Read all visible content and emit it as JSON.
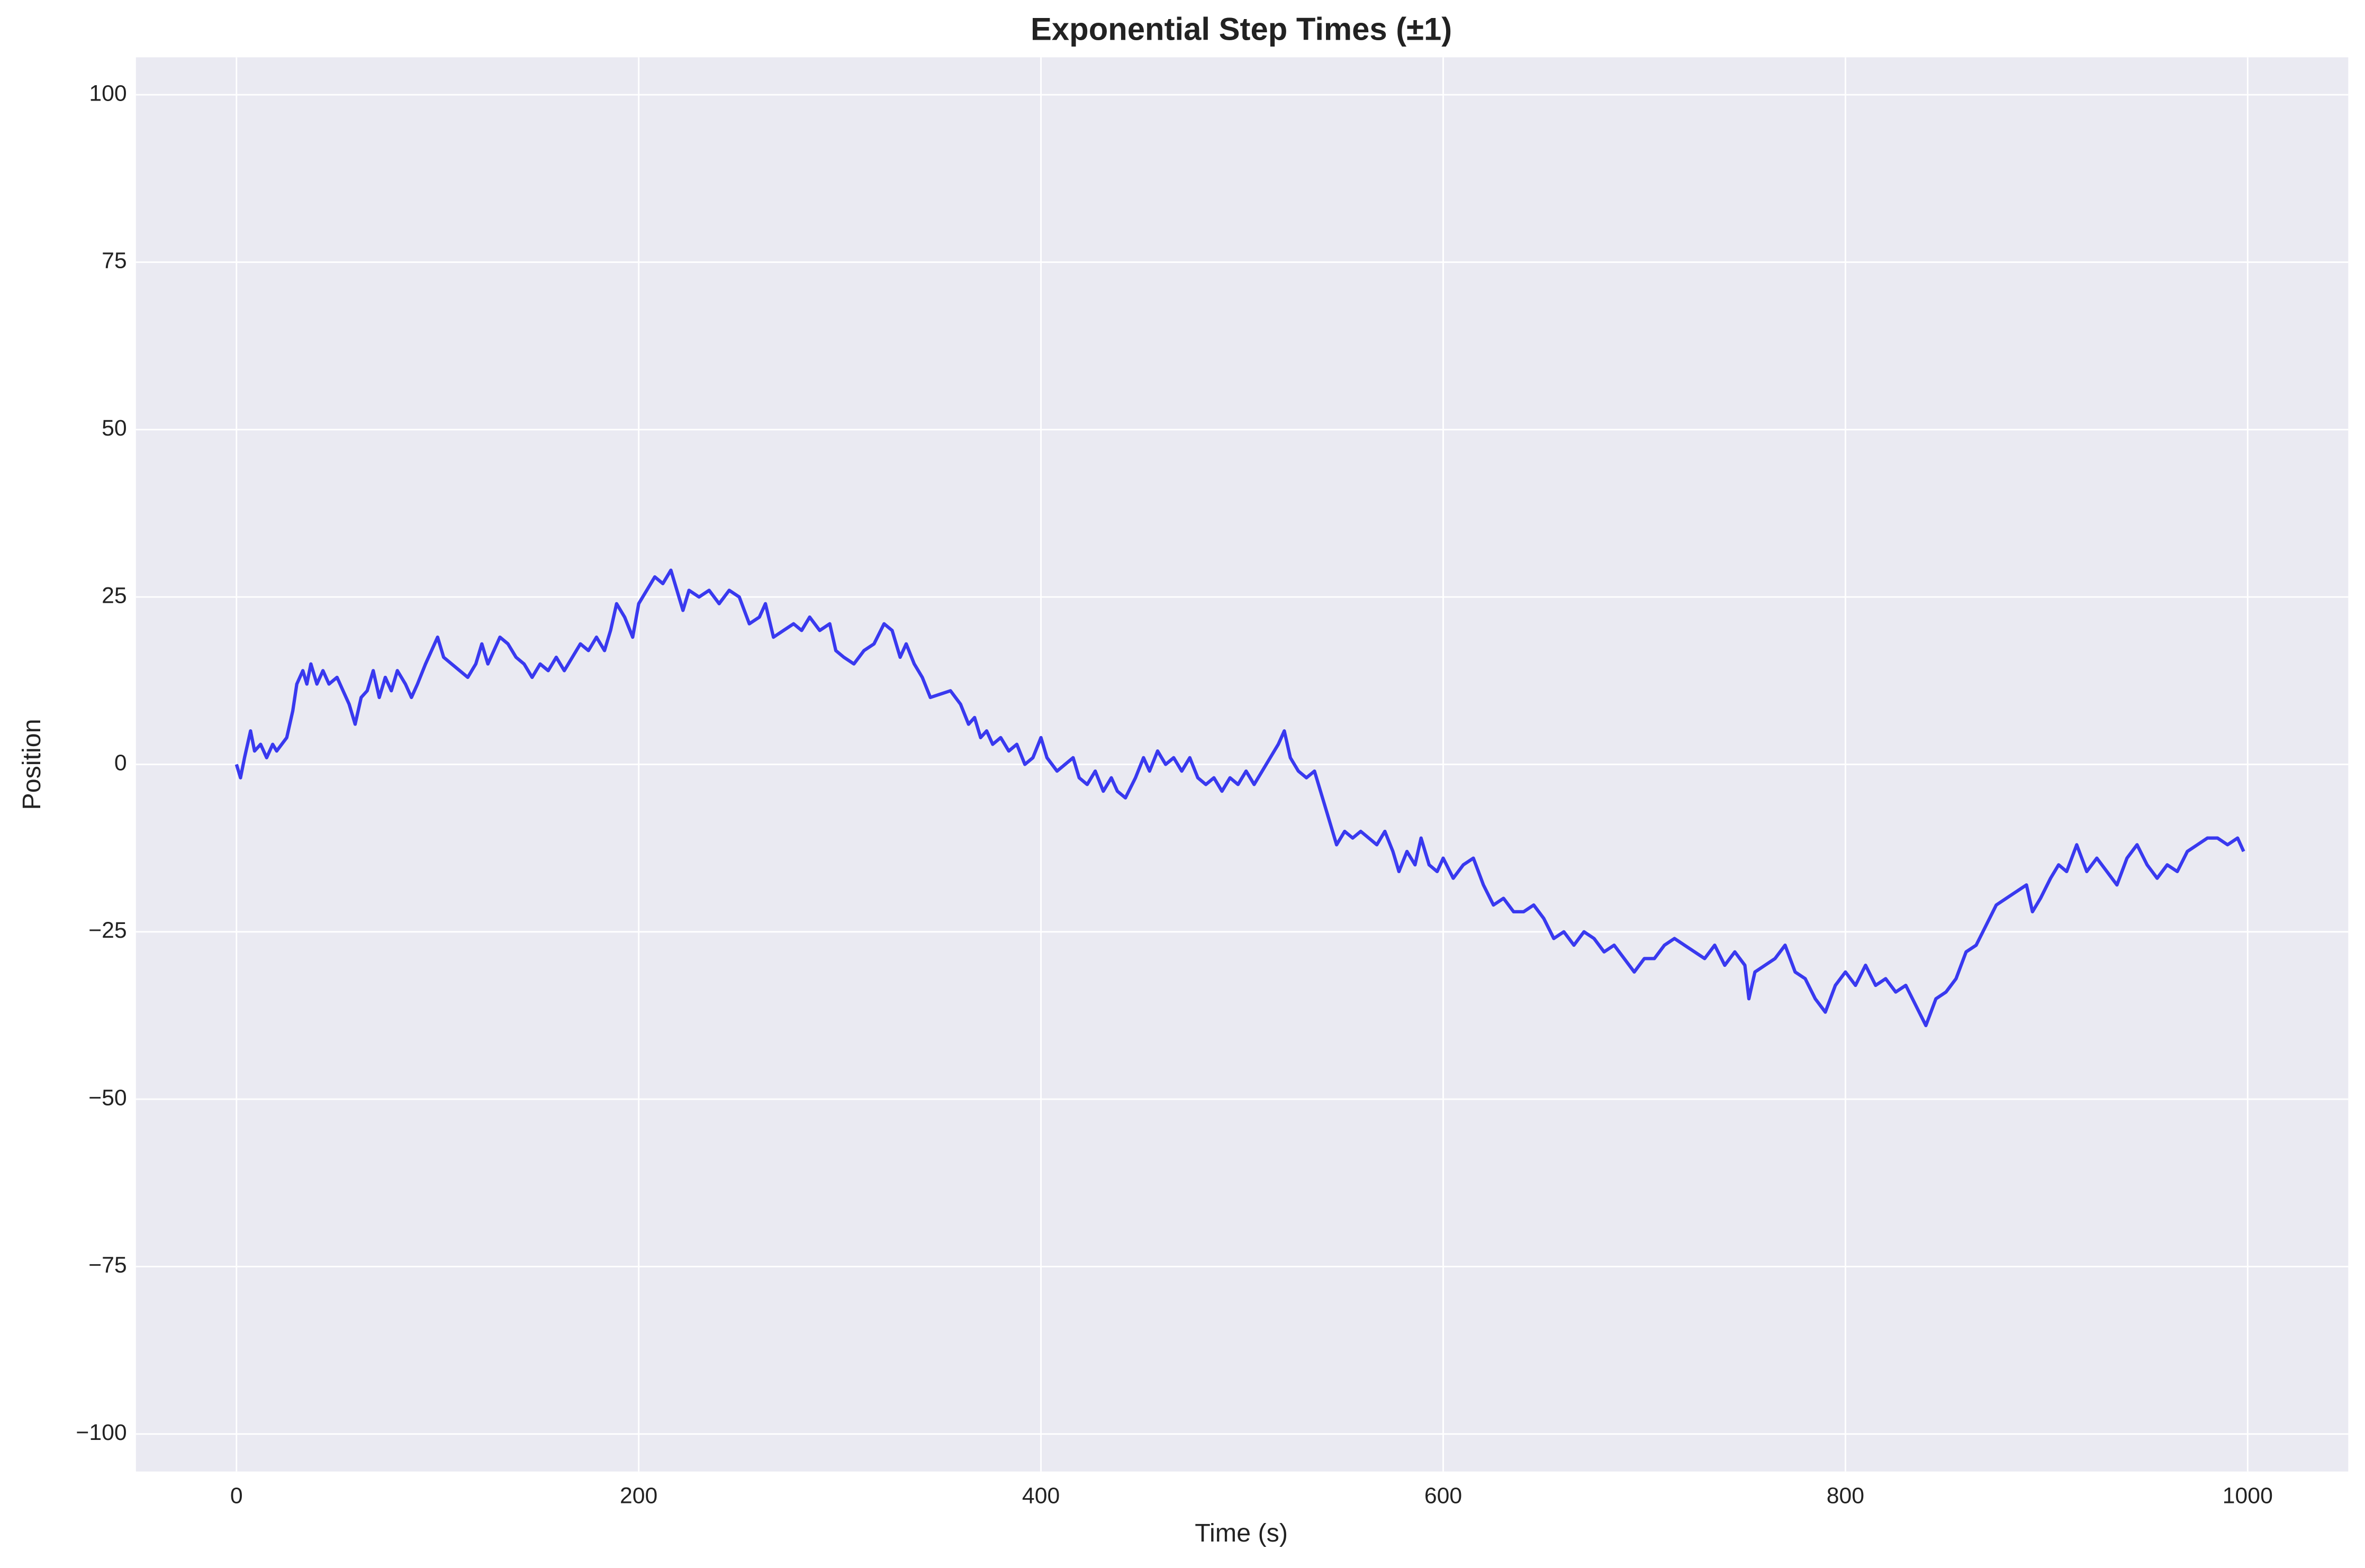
{
  "chart_data": {
    "type": "line",
    "title": "Exponential Step Times (±1)",
    "x_label": "Time (s)",
    "y_label": "Position",
    "color": "#1a1aee",
    "x": [
      0,
      2,
      4,
      7,
      9,
      12,
      15,
      18,
      20,
      25,
      28,
      30,
      33,
      35,
      37,
      40,
      43,
      46,
      50,
      53,
      56,
      59,
      62,
      65,
      68,
      71,
      74,
      77,
      80,
      84,
      87,
      90,
      94,
      97,
      100,
      103,
      107,
      111,
      115,
      119,
      122,
      125,
      128,
      131,
      135,
      139,
      143,
      147,
      151,
      155,
      159,
      163,
      167,
      171,
      175,
      179,
      183,
      186,
      189,
      193,
      197,
      200,
      204,
      208,
      212,
      216,
      219,
      222,
      225,
      230,
      235,
      240,
      245,
      250,
      255,
      260,
      263,
      267,
      272,
      277,
      281,
      285,
      290,
      295,
      298,
      302,
      307,
      312,
      317,
      322,
      326,
      330,
      333,
      337,
      341,
      345,
      355,
      360,
      364,
      367,
      370,
      373,
      376,
      380,
      384,
      388,
      392,
      396,
      400,
      403,
      408,
      412,
      416,
      419,
      423,
      427,
      431,
      435,
      438,
      442,
      447,
      451,
      454,
      458,
      462,
      466,
      470,
      474,
      478,
      482,
      486,
      490,
      494,
      498,
      502,
      506,
      510,
      514,
      518,
      521,
      524,
      528,
      532,
      536,
      539,
      543,
      547,
      551,
      555,
      559,
      563,
      567,
      571,
      575,
      578,
      582,
      586,
      589,
      593,
      597,
      600,
      605,
      610,
      615,
      620,
      625,
      630,
      635,
      640,
      645,
      650,
      655,
      660,
      665,
      670,
      675,
      680,
      685,
      690,
      695,
      700,
      705,
      710,
      715,
      720,
      725,
      730,
      735,
      740,
      745,
      750,
      752,
      755,
      760,
      765,
      770,
      775,
      780,
      785,
      790,
      795,
      800,
      805,
      810,
      815,
      820,
      825,
      830,
      835,
      840,
      845,
      850,
      855,
      860,
      865,
      870,
      875,
      880,
      885,
      890,
      893,
      897,
      902,
      906,
      910,
      915,
      920,
      925,
      930,
      935,
      940,
      945,
      950,
      955,
      960,
      965,
      970,
      975,
      980,
      985,
      990,
      995,
      998
    ],
    "values": [
      0,
      -2,
      1,
      5,
      2,
      3,
      1,
      3,
      2,
      4,
      8,
      12,
      14,
      12,
      15,
      12,
      14,
      12,
      13,
      11,
      9,
      6,
      10,
      11,
      14,
      10,
      13,
      11,
      14,
      12,
      10,
      12,
      15,
      17,
      19,
      16,
      15,
      14,
      13,
      15,
      18,
      15,
      17,
      19,
      18,
      16,
      15,
      13,
      15,
      14,
      16,
      14,
      16,
      18,
      17,
      19,
      17,
      20,
      24,
      22,
      19,
      24,
      26,
      28,
      27,
      29,
      26,
      23,
      26,
      25,
      26,
      24,
      26,
      25,
      21,
      22,
      24,
      19,
      20,
      21,
      20,
      22,
      20,
      21,
      17,
      16,
      15,
      17,
      18,
      21,
      20,
      16,
      18,
      15,
      13,
      10,
      11,
      9,
      6,
      7,
      4,
      5,
      3,
      4,
      2,
      3,
      0,
      1,
      4,
      1,
      -1,
      0,
      1,
      -2,
      -3,
      -1,
      -4,
      -2,
      -4,
      -5,
      -2,
      1,
      -1,
      2,
      0,
      1,
      -1,
      1,
      -2,
      -3,
      -2,
      -4,
      -2,
      -3,
      -1,
      -3,
      -1,
      1,
      3,
      5,
      1,
      -1,
      -2,
      -1,
      -4,
      -8,
      -12,
      -10,
      -11,
      -10,
      -11,
      -12,
      -10,
      -13,
      -16,
      -13,
      -15,
      -11,
      -15,
      -16,
      -14,
      -17,
      -15,
      -14,
      -18,
      -21,
      -20,
      -22,
      -22,
      -21,
      -23,
      -26,
      -25,
      -27,
      -25,
      -26,
      -28,
      -27,
      -29,
      -31,
      -29,
      -29,
      -27,
      -26,
      -27,
      -28,
      -29,
      -27,
      -30,
      -28,
      -30,
      -35,
      -31,
      -30,
      -29,
      -27,
      -31,
      -32,
      -35,
      -37,
      -33,
      -31,
      -33,
      -30,
      -33,
      -32,
      -34,
      -33,
      -36,
      -39,
      -35,
      -34,
      -32,
      -28,
      -27,
      -24,
      -21,
      -20,
      -19,
      -18,
      -22,
      -20,
      -17,
      -15,
      -16,
      -12,
      -16,
      -14,
      -16,
      -18,
      -14,
      -12,
      -15,
      -17,
      -15,
      -16,
      -13,
      -12,
      -11,
      -11,
      -12,
      -11,
      -13
    ],
    "xlim": [
      -50,
      1050
    ],
    "ylim": [
      -105.6,
      105.6
    ],
    "xticks": [
      0,
      200,
      400,
      600,
      800,
      1000
    ],
    "yticks": [
      {
        "value": -100,
        "label": "−100"
      },
      {
        "value": -75,
        "label": "−75"
      },
      {
        "value": -50,
        "label": "−50"
      },
      {
        "value": -25,
        "label": "−25"
      },
      0,
      25,
      50,
      75,
      100
    ],
    "grid": true
  }
}
